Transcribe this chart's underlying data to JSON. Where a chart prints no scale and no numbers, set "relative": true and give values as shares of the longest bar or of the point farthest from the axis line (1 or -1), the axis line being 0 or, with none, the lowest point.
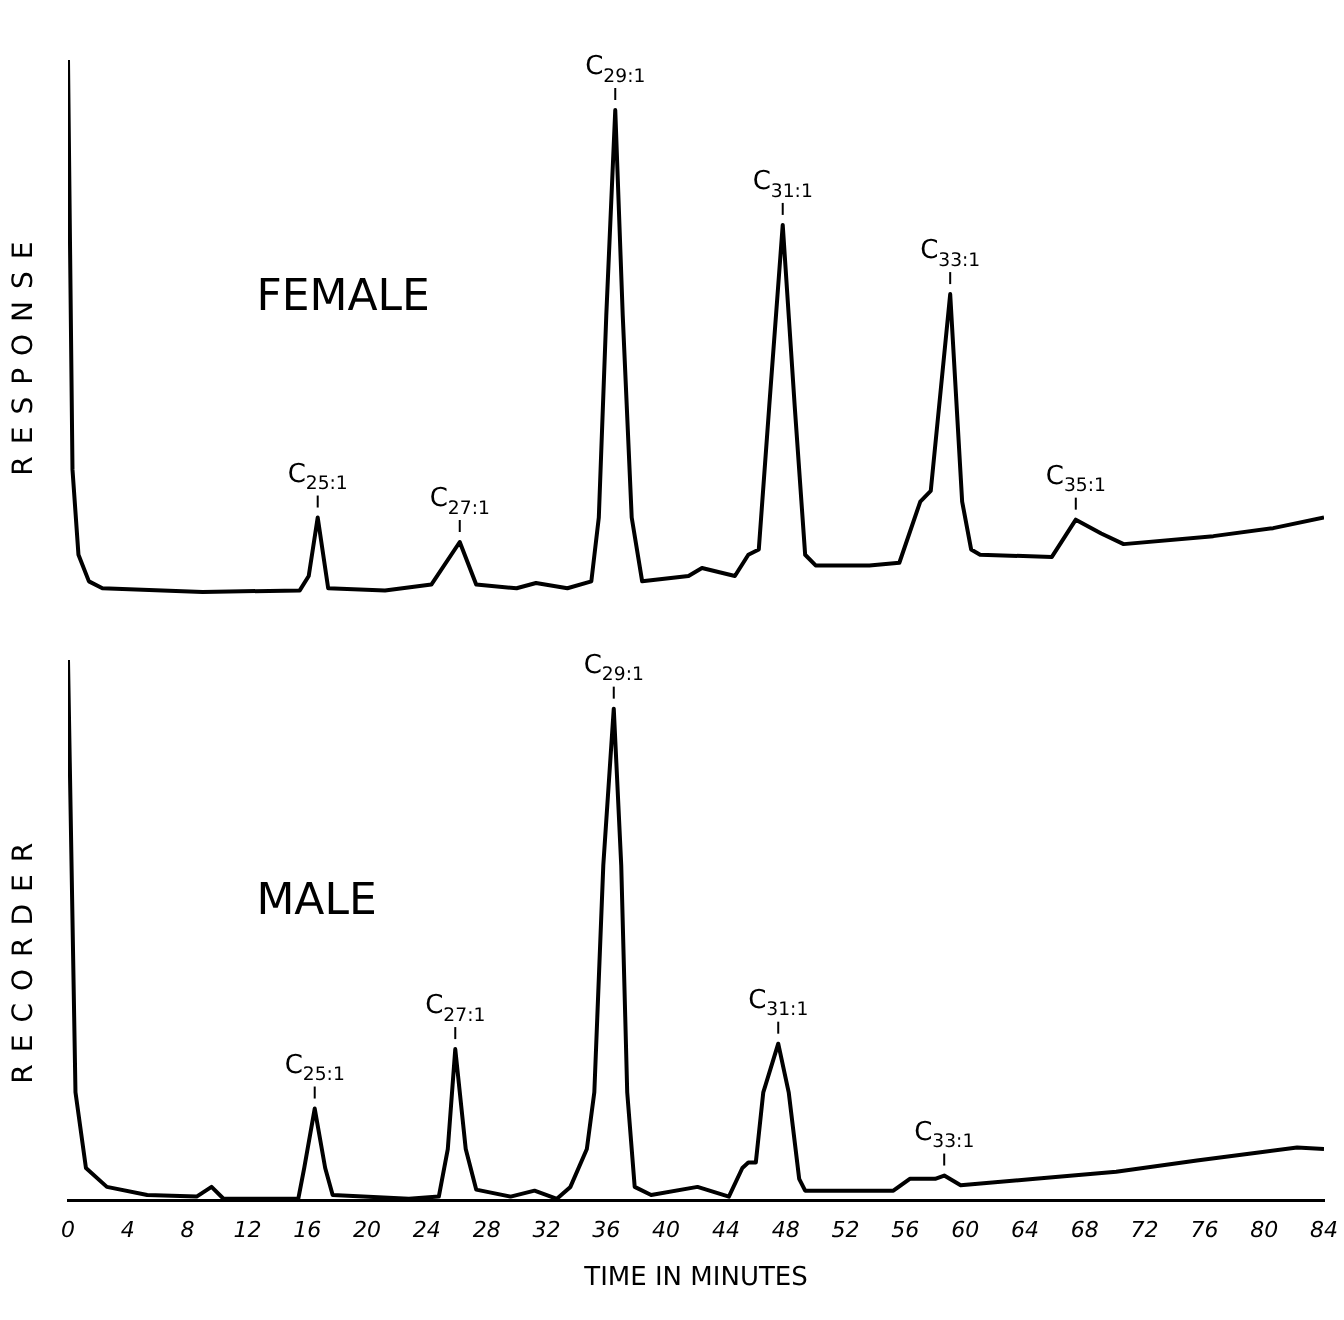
{
  "chart_data": [
    {
      "type": "line",
      "relative": true,
      "ylabel": "RESPONSE",
      "xlim": [
        0,
        84
      ],
      "tick_labels": false,
      "grid": false,
      "legend": false,
      "marker": "none",
      "line_style": "solid",
      "annotations": [
        "FEMALE",
        {
          "text": "C$_{25:1}$",
          "x": 16.7,
          "y": 0.14
        },
        {
          "text": "C$_{27:1}$",
          "x": 26.2,
          "y": 0.094
        },
        {
          "text": "C$_{29:1}$",
          "x": 36.6,
          "y": 0.906
        },
        {
          "text": "C$_{31:1}$",
          "x": 47.8,
          "y": 0.69
        },
        {
          "text": "C$_{33:1}$",
          "x": 59,
          "y": 0.56
        },
        {
          "text": "C$_{35:1}$",
          "x": 67.4,
          "y": 0.136
        }
      ],
      "series": [
        {
          "color": "#000000",
          "x": [
            0,
            0.3,
            0.7,
            1.4,
            2.3,
            9,
            15.5,
            16.1,
            16.7,
            17.4,
            21.2,
            24.3,
            26.2,
            27.3,
            30,
            31.3,
            33.4,
            35,
            35.5,
            36,
            36.6,
            37.1,
            37.7,
            38.4,
            41.5,
            42.4,
            44.6,
            45.5,
            46.2,
            46.9,
            47.8,
            48.6,
            49.3,
            50,
            53.6,
            55.6,
            57,
            57.7,
            59,
            59.8,
            60.4,
            61,
            65.8,
            67.4,
            69.1,
            70.6,
            76.6,
            80.6,
            84
          ],
          "values": [
            1,
            0.23,
            0.07,
            0.02,
            0.007,
            0,
            0.003,
            0.03,
            0.14,
            0.007,
            0.003,
            0.014,
            0.094,
            0.014,
            0.007,
            0.017,
            0.007,
            0.02,
            0.14,
            0.52,
            0.906,
            0.52,
            0.14,
            0.02,
            0.03,
            0.045,
            0.03,
            0.07,
            0.08,
            0.35,
            0.69,
            0.35,
            0.07,
            0.05,
            0.05,
            0.055,
            0.17,
            0.19,
            0.56,
            0.17,
            0.08,
            0.07,
            0.066,
            0.136,
            0.11,
            0.09,
            0.105,
            0.12,
            0.14
          ]
        }
      ]
    },
    {
      "type": "line",
      "relative": true,
      "ylabel": "RECORDER",
      "xlabel": "TIME IN MINUTES",
      "xlim": [
        0,
        84
      ],
      "xticks": [
        0,
        4,
        8,
        12,
        16,
        20,
        24,
        28,
        32,
        36,
        40,
        44,
        48,
        52,
        56,
        60,
        64,
        68,
        72,
        76,
        80,
        84
      ],
      "tick_labels": "x",
      "grid": false,
      "legend": false,
      "marker": "none",
      "line_style": "solid",
      "annotations": [
        "MALE",
        {
          "text": "C$_{25:1}$",
          "x": 16.5,
          "y": 0.17
        },
        {
          "text": "C$_{27:1}$",
          "x": 25.9,
          "y": 0.28
        },
        {
          "text": "C$_{29:1}$",
          "x": 36.5,
          "y": 0.91
        },
        {
          "text": "C$_{31:1}$",
          "x": 47.5,
          "y": 0.29
        },
        {
          "text": "C$_{33:1}$",
          "x": 58.6,
          "y": 0.046
        }
      ],
      "series": [
        {
          "color": "#000000",
          "x": [
            0,
            0.5,
            1.2,
            2.6,
            5.3,
            8.6,
            9.6,
            10.4,
            15.4,
            15.8,
            16.5,
            17.2,
            17.7,
            22.8,
            24.8,
            25.4,
            25.9,
            26.6,
            27.3,
            29.6,
            31.2,
            32.7,
            33.6,
            34.7,
            35.2,
            35.8,
            36.5,
            37,
            37.4,
            37.9,
            39,
            42.1,
            44.2,
            45.1,
            45.5,
            46,
            46.5,
            47.5,
            48.2,
            48.9,
            49.3,
            55.2,
            56.3,
            58,
            58.6,
            59.7,
            64.7,
            70.1,
            75.5,
            79.5,
            82.2,
            84
          ],
          "values": [
            1,
            0.2,
            0.06,
            0.025,
            0.01,
            0.007,
            0.025,
            0.003,
            0.003,
            0.06,
            0.17,
            0.06,
            0.01,
            0.003,
            0.007,
            0.095,
            0.28,
            0.095,
            0.02,
            0.007,
            0.018,
            0.003,
            0.025,
            0.095,
            0.2,
            0.62,
            0.91,
            0.62,
            0.2,
            0.025,
            0.01,
            0.025,
            0.007,
            0.06,
            0.07,
            0.07,
            0.2,
            0.29,
            0.2,
            0.04,
            0.018,
            0.018,
            0.04,
            0.04,
            0.046,
            0.028,
            0.04,
            0.053,
            0.074,
            0.088,
            0.098,
            0.095
          ]
        }
      ]
    }
  ]
}
